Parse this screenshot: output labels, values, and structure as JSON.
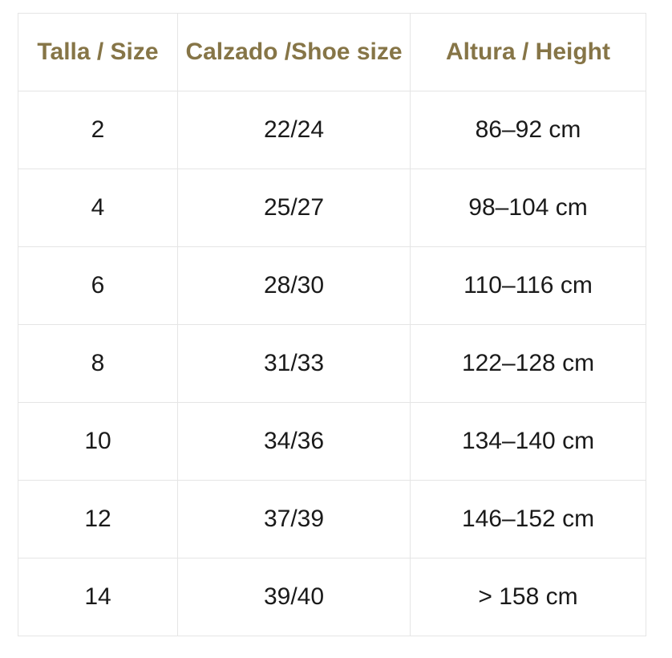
{
  "colors": {
    "background": "#ffffff",
    "header_text": "#867547",
    "body_text": "#1a1a1a",
    "border": "#e5e5e5"
  },
  "chart_data": {
    "type": "table",
    "title": "",
    "columns": [
      "Talla / Size",
      "Calzado /Shoe size",
      "Altura / Height"
    ],
    "rows": [
      [
        "2",
        "22/24",
        "86–92 cm"
      ],
      [
        "4",
        "25/27",
        "98–104 cm"
      ],
      [
        "6",
        "28/30",
        "110–116 cm"
      ],
      [
        "8",
        "31/33",
        "122–128 cm"
      ],
      [
        "10",
        "34/36",
        "134–140 cm"
      ],
      [
        "12",
        "37/39",
        "146–152 cm"
      ],
      [
        "14",
        "39/40",
        "> 158 cm"
      ]
    ]
  }
}
